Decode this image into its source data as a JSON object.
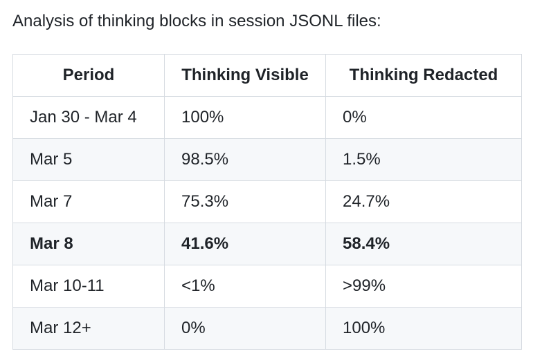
{
  "page": {
    "title": "Analysis of thinking blocks in session JSONL files:"
  },
  "table": {
    "columns": [
      "Period",
      "Thinking Visible",
      "Thinking Redacted"
    ],
    "rows": [
      {
        "period": "Jan 30 - Mar 4",
        "visible": "100%",
        "redacted": "0%",
        "bold": false
      },
      {
        "period": "Mar 5",
        "visible": "98.5%",
        "redacted": "1.5%",
        "bold": false
      },
      {
        "period": "Mar 7",
        "visible": "75.3%",
        "redacted": "24.7%",
        "bold": false
      },
      {
        "period": "Mar 8",
        "visible": "41.6%",
        "redacted": "58.4%",
        "bold": true
      },
      {
        "period": "Mar 10-11",
        "visible": "<1%",
        "redacted": ">99%",
        "bold": false
      },
      {
        "period": "Mar 12+",
        "visible": "0%",
        "redacted": "100%",
        "bold": false
      }
    ]
  },
  "colors": {
    "background": "#ffffff",
    "text": "#1f2328",
    "border": "#d6dbe1",
    "stripe": "#f6f8fa"
  }
}
